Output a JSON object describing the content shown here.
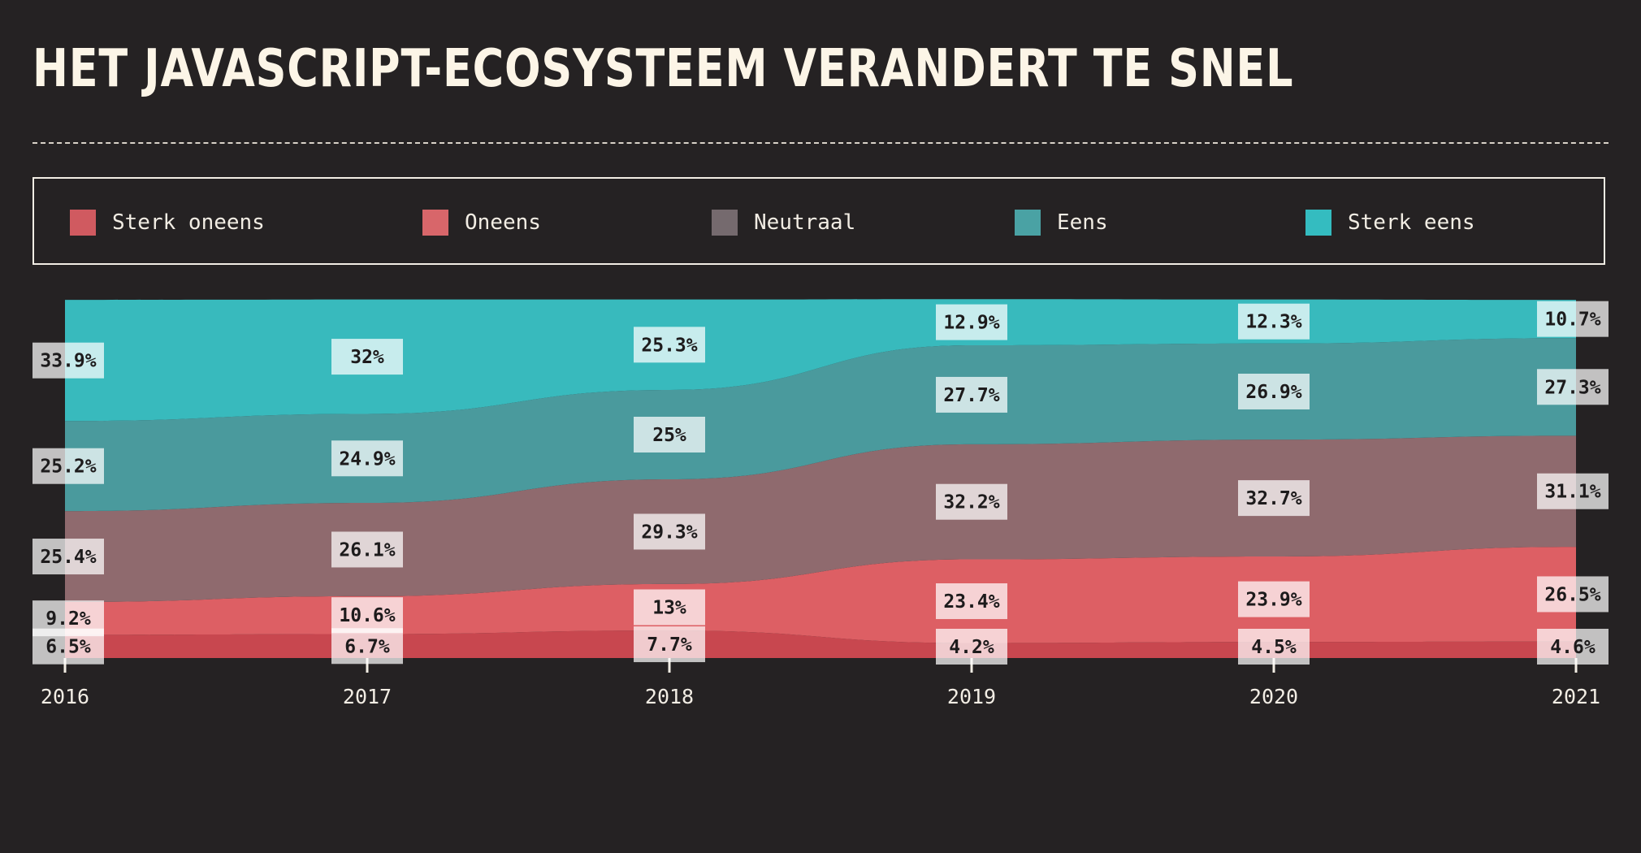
{
  "title": "HET JAVASCRIPT-ECOSYSTEEM VERANDERT TE SNEL",
  "chart_data": {
    "type": "area",
    "stacked": true,
    "normalized": true,
    "title": "HET JAVASCRIPT-ECOSYSTEEM VERANDERT TE SNEL",
    "categories": [
      "2016",
      "2017",
      "2018",
      "2019",
      "2020",
      "2021"
    ],
    "ylim": [
      0,
      100
    ],
    "legend_position": "top",
    "series": [
      {
        "name": "Sterk oneens",
        "color": "#c8474f",
        "values": [
          6.5,
          6.7,
          7.7,
          4.2,
          4.5,
          4.6
        ],
        "labels": [
          "6.5%",
          "6.7%",
          "7.7%",
          "4.2%",
          "4.5%",
          "4.6%"
        ]
      },
      {
        "name": "Oneens",
        "color": "#dd5f64",
        "values": [
          9.2,
          10.6,
          13,
          23.4,
          23.9,
          26.5
        ],
        "labels": [
          "9.2%",
          "10.6%",
          "13%",
          "23.4%",
          "23.9%",
          "26.5%"
        ]
      },
      {
        "name": "Neutraal",
        "color": "#8f6a6e",
        "values": [
          25.4,
          26.1,
          29.3,
          32.2,
          32.7,
          31.1
        ],
        "labels": [
          "25.4%",
          "26.1%",
          "29.3%",
          "32.2%",
          "32.7%",
          "31.1%"
        ]
      },
      {
        "name": "Eens",
        "color": "#4a9a9d",
        "values": [
          25.2,
          24.9,
          25,
          27.7,
          26.9,
          27.3
        ],
        "labels": [
          "25.2%",
          "24.9%",
          "25%",
          "27.7%",
          "26.9%",
          "27.3%"
        ]
      },
      {
        "name": "Sterk eens",
        "color": "#38babd",
        "values": [
          33.9,
          32,
          25.3,
          12.9,
          12.3,
          10.7
        ],
        "labels": [
          "33.9%",
          "32%",
          "25.3%",
          "12.9%",
          "12.3%",
          "10.7%"
        ]
      }
    ]
  },
  "legend": {
    "swatch_colors": [
      "#d05a60",
      "#d8666a",
      "#756a6e",
      "#4aa2a4",
      "#34bcc0"
    ]
  }
}
